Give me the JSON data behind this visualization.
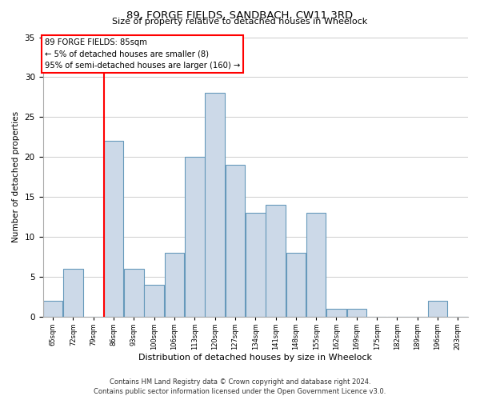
{
  "title": "89, FORGE FIELDS, SANDBACH, CW11 3RD",
  "subtitle": "Size of property relative to detached houses in Wheelock",
  "xlabel": "Distribution of detached houses by size in Wheelock",
  "ylabel": "Number of detached properties",
  "footer1": "Contains HM Land Registry data © Crown copyright and database right 2024.",
  "footer2": "Contains public sector information licensed under the Open Government Licence v3.0.",
  "bin_labels": [
    "65sqm",
    "72sqm",
    "79sqm",
    "86sqm",
    "93sqm",
    "100sqm",
    "106sqm",
    "113sqm",
    "120sqm",
    "127sqm",
    "134sqm",
    "141sqm",
    "148sqm",
    "155sqm",
    "162sqm",
    "169sqm",
    "175sqm",
    "182sqm",
    "189sqm",
    "196sqm",
    "203sqm"
  ],
  "bar_heights": [
    2,
    6,
    0,
    22,
    6,
    4,
    8,
    20,
    28,
    19,
    13,
    14,
    8,
    13,
    1,
    1,
    0,
    0,
    0,
    2,
    0
  ],
  "bar_color": "#ccd9e8",
  "bar_edge_color": "#6699bb",
  "marker_bar_index": 3,
  "annotation_title": "89 FORGE FIELDS: 85sqm",
  "annotation_line1": "← 5% of detached houses are smaller (8)",
  "annotation_line2": "95% of semi-detached houses are larger (160) →",
  "annotation_box_facecolor": "white",
  "annotation_box_edgecolor": "red",
  "marker_line_color": "red",
  "ylim": [
    0,
    35
  ],
  "yticks": [
    0,
    5,
    10,
    15,
    20,
    25,
    30,
    35
  ],
  "grid_color": "#cccccc",
  "title_fontsize": 9.5,
  "subtitle_fontsize": 8,
  "xlabel_fontsize": 8,
  "ylabel_fontsize": 7.5,
  "xtick_fontsize": 6,
  "ytick_fontsize": 7.5,
  "footer_fontsize": 6
}
